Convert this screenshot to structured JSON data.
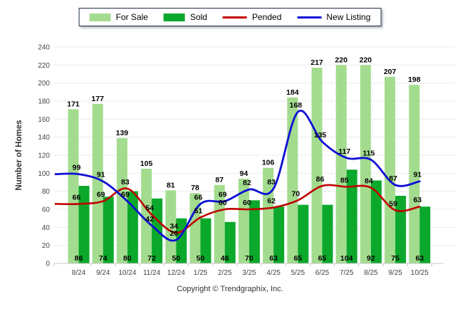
{
  "chart_data": {
    "type": "bar+line",
    "categories": [
      "8/24",
      "9/24",
      "10/24",
      "11/24",
      "12/24",
      "1/25",
      "2/25",
      "3/25",
      "4/25",
      "5/25",
      "6/25",
      "7/25",
      "8/25",
      "9/25",
      "10/25"
    ],
    "series": [
      {
        "name": "For Sale",
        "type": "bar",
        "color": "#A3DC8E",
        "values": [
          171,
          177,
          139,
          105,
          81,
          78,
          87,
          94,
          106,
          184,
          217,
          220,
          220,
          207,
          198
        ]
      },
      {
        "name": "Sold",
        "type": "bar",
        "color": "#0BA82B",
        "values": [
          86,
          74,
          80,
          72,
          50,
          50,
          46,
          70,
          63,
          65,
          65,
          104,
          92,
          75,
          63
        ]
      },
      {
        "name": "Pended",
        "type": "line",
        "color": "#C00000",
        "values": [
          66,
          69,
          83,
          54,
          34,
          51,
          60,
          60,
          62,
          70,
          86,
          85,
          84,
          59,
          63
        ]
      },
      {
        "name": "New Listing",
        "type": "line",
        "color": "#0F0FD6",
        "values": [
          99,
          91,
          69,
          42,
          26,
          66,
          69,
          82,
          83,
          168,
          135,
          117,
          115,
          87,
          91
        ]
      }
    ],
    "title": "",
    "xlabel": "",
    "ylabel": "Number of Homes",
    "ylim": [
      0,
      240
    ],
    "ytick_step": 20,
    "grid": true,
    "legend_position": "top",
    "colors": {
      "gridline": "#ECECEC",
      "axis": "#C9C9C9",
      "tick_text": "#444444",
      "data_label": "#000000",
      "axis_title": "#333333"
    }
  },
  "footer": {
    "copyright": "Copyright © Trendgraphix, Inc."
  }
}
